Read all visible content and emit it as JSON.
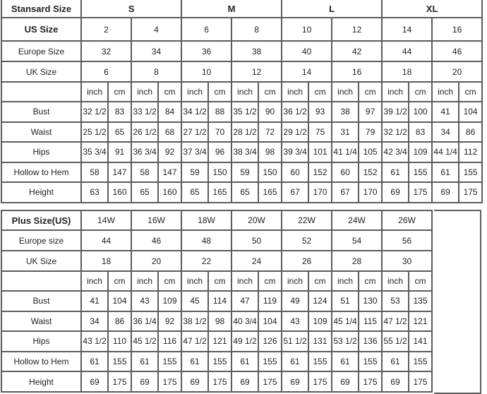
{
  "standard_table": {
    "header_label": "Stansard Size",
    "letter_sizes": [
      "S",
      "M",
      "L",
      "XL"
    ],
    "letter_sizes_all": [
      "S",
      "M",
      "L",
      "XL",
      "XL"
    ],
    "rows_meta": [
      {
        "label": "US Size",
        "values": [
          "2",
          "4",
          "6",
          "8",
          "10",
          "12",
          "14",
          "16"
        ]
      }
    ],
    "us_label": "US Size",
    "us_sizes": [
      "2",
      "4",
      "6",
      "8",
      "10",
      "12",
      "14",
      "16",
      "",
      ""
    ],
    "europe_label": "Europe Size",
    "europe_sizes": [
      "32",
      "34",
      "36",
      "38",
      "40",
      "42",
      "44",
      "46"
    ],
    "uk_label": "UK Size",
    "uk_sizes": [
      "6",
      "8",
      "10",
      "12",
      "14",
      "16",
      "18",
      "20"
    ],
    "unit_labels": [
      "inch",
      "cm"
    ],
    "measurements": [
      {
        "label": "Bust",
        "values": [
          "32 1/2",
          "83",
          "33 1/2",
          "84",
          "34 1/2",
          "88",
          "35 1/2",
          "90",
          "36 1/2",
          "93",
          "38",
          "97",
          "39 1/2",
          "100",
          "41",
          "104"
        ]
      },
      {
        "label": "Waist",
        "values": [
          "25 1/2",
          "65",
          "26 1/2",
          "68",
          "27 1/2",
          "70",
          "28 1/2",
          "72",
          "29 1/2",
          "75",
          "31",
          "79",
          "32 1/2",
          "83",
          "34",
          "86"
        ]
      },
      {
        "label": "Hips",
        "values": [
          "35 3/4",
          "91",
          "36 3/4",
          "92",
          "37 3/4",
          "96",
          "38 3/4",
          "98",
          "39 3/4",
          "101",
          "41 1/4",
          "105",
          "42 3/4",
          "109",
          "44 1/4",
          "112"
        ]
      },
      {
        "label": "Hollow to Hem",
        "values": [
          "58",
          "147",
          "58",
          "147",
          "59",
          "150",
          "59",
          "150",
          "60",
          "152",
          "60",
          "152",
          "61",
          "155",
          "61",
          "155"
        ]
      },
      {
        "label": "Height",
        "values": [
          "63",
          "160",
          "65",
          "160",
          "65",
          "165",
          "65",
          "165",
          "67",
          "170",
          "67",
          "170",
          "69",
          "175",
          "69",
          "175"
        ]
      }
    ]
  },
  "plus_table": {
    "header_label": "Plus Size(US)",
    "us_sizes": [
      "14W",
      "16W",
      "18W",
      "20W",
      "22W",
      "24W",
      "26W"
    ],
    "europe_label": "Europe size",
    "europe_sizes": [
      "44",
      "46",
      "48",
      "50",
      "52",
      "54",
      "56"
    ],
    "uk_label": "UK Size",
    "uk_sizes": [
      "18",
      "20",
      "22",
      "24",
      "26",
      "28",
      "30"
    ],
    "unit_labels": [
      "inch",
      "cm"
    ],
    "measurements": [
      {
        "label": "Bust",
        "values": [
          "41",
          "104",
          "43",
          "109",
          "45",
          "114",
          "47",
          "119",
          "49",
          "124",
          "51",
          "130",
          "53",
          "135"
        ]
      },
      {
        "label": "Waist",
        "values": [
          "34",
          "86",
          "36 1/4",
          "92",
          "38 1/2",
          "98",
          "40 3/4",
          "104",
          "43",
          "109",
          "45 1/4",
          "115",
          "47 1/2",
          "121"
        ]
      },
      {
        "label": "Hips",
        "values": [
          "43 1/2",
          "110",
          "45 1/2",
          "116",
          "47 1/2",
          "121",
          "49 1/2",
          "126",
          "51 1/2",
          "131",
          "53 1/2",
          "136",
          "55 1/2",
          "141"
        ]
      },
      {
        "label": "Hollow to Hem",
        "values": [
          "61",
          "155",
          "61",
          "155",
          "61",
          "155",
          "61",
          "155",
          "61",
          "155",
          "61",
          "155",
          "61",
          "155"
        ]
      },
      {
        "label": "Height",
        "values": [
          "69",
          "175",
          "69",
          "175",
          "69",
          "175",
          "69",
          "175",
          "69",
          "175",
          "69",
          "175",
          "69",
          "175"
        ]
      }
    ]
  }
}
